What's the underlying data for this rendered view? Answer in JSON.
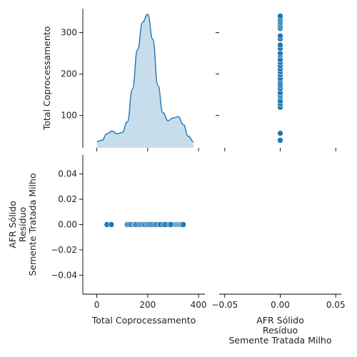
{
  "chart_data": [
    {
      "panel": "top-left",
      "type": "area",
      "subtype": "kde",
      "xlabel": "",
      "ylabel": "Total Coprocessamento",
      "xlim": [
        -55,
        425
      ],
      "xticks": [
        0,
        200,
        400
      ],
      "ylim": [
        22,
        358
      ],
      "yticks": [
        100,
        200,
        300
      ],
      "x": [
        0,
        20,
        40,
        60,
        80,
        100,
        120,
        140,
        160,
        180,
        200,
        220,
        240,
        260,
        280,
        300,
        320,
        340,
        360,
        380
      ],
      "density": [
        0.02,
        0.03,
        0.08,
        0.1,
        0.08,
        0.09,
        0.17,
        0.42,
        0.72,
        0.93,
        0.99,
        0.8,
        0.45,
        0.24,
        0.18,
        0.2,
        0.21,
        0.15,
        0.06,
        0.02
      ],
      "color": "#1f77b4"
    },
    {
      "panel": "top-right",
      "type": "scatter",
      "xlabel": "",
      "ylabel": "",
      "xlim": [
        -0.055,
        0.055
      ],
      "xticks": [
        -0.05,
        0,
        0.05
      ],
      "ylim": [
        22,
        358
      ],
      "yticks": [
        100,
        200,
        300
      ],
      "x": [
        0,
        0,
        0,
        0,
        0,
        0,
        0,
        0,
        0,
        0,
        0,
        0,
        0,
        0,
        0,
        0,
        0,
        0,
        0,
        0,
        0,
        0,
        0,
        0,
        0,
        0,
        0,
        0,
        0,
        0,
        0,
        0
      ],
      "y": [
        40,
        57,
        120,
        128,
        135,
        145,
        150,
        155,
        165,
        172,
        178,
        185,
        190,
        198,
        205,
        212,
        220,
        228,
        235,
        245,
        250,
        262,
        270,
        285,
        292,
        310,
        315,
        320,
        325,
        330,
        335,
        340
      ],
      "color": "#1f77b4"
    },
    {
      "panel": "bottom-left",
      "type": "scatter",
      "xlabel": "Total Coprocessamento",
      "ylabel": "AFR Sólido\nResíduo\nSemente Tratada Milho",
      "xlim": [
        -55,
        425
      ],
      "xticks": [
        0,
        200,
        400
      ],
      "ylim": [
        -0.055,
        0.055
      ],
      "yticks": [
        0.04,
        0.02,
        0.0,
        -0.02,
        -0.04
      ],
      "ytick_labels": [
        "0.04",
        "0.02",
        "0.00",
        "−0.02",
        "−0.04"
      ],
      "x": [
        40,
        57,
        120,
        128,
        135,
        145,
        150,
        155,
        165,
        172,
        178,
        185,
        190,
        198,
        205,
        212,
        220,
        228,
        235,
        245,
        250,
        262,
        270,
        285,
        292,
        310,
        315,
        320,
        325,
        330,
        335,
        340
      ],
      "y": [
        0,
        0,
        0,
        0,
        0,
        0,
        0,
        0,
        0,
        0,
        0,
        0,
        0,
        0,
        0,
        0,
        0,
        0,
        0,
        0,
        0,
        0,
        0,
        0,
        0,
        0,
        0,
        0,
        0,
        0,
        0,
        0
      ],
      "color": "#1f77b4"
    },
    {
      "panel": "bottom-right",
      "type": "scatter",
      "xlabel": "AFR Sólido\nResíduo\nSemente Tratada Milho",
      "ylabel": "",
      "xlim": [
        -0.055,
        0.055
      ],
      "xticks": [
        -0.05,
        0,
        0.05
      ],
      "xtick_labels": [
        "−0.05",
        "0.00",
        "0.05"
      ],
      "ylim": [
        -0.055,
        0.055
      ],
      "x": [],
      "y": []
    }
  ]
}
